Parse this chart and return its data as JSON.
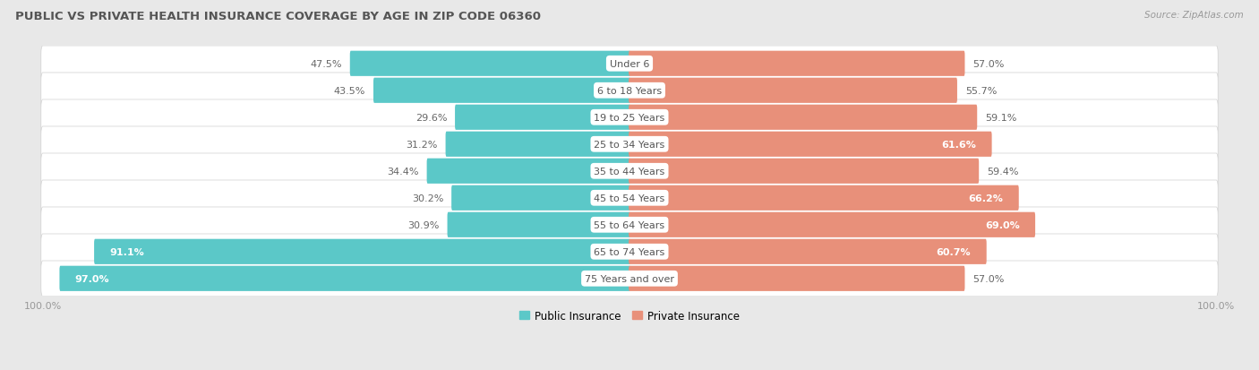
{
  "title": "PUBLIC VS PRIVATE HEALTH INSURANCE COVERAGE BY AGE IN ZIP CODE 06360",
  "source": "Source: ZipAtlas.com",
  "categories": [
    "Under 6",
    "6 to 18 Years",
    "19 to 25 Years",
    "25 to 34 Years",
    "35 to 44 Years",
    "45 to 54 Years",
    "55 to 64 Years",
    "65 to 74 Years",
    "75 Years and over"
  ],
  "public_values": [
    47.5,
    43.5,
    29.6,
    31.2,
    34.4,
    30.2,
    30.9,
    91.1,
    97.0
  ],
  "private_values": [
    57.0,
    55.7,
    59.1,
    61.6,
    59.4,
    66.2,
    69.0,
    60.7,
    57.0
  ],
  "public_color": "#5BC8C8",
  "private_color": "#E8907A",
  "bg_color": "#E8E8E8",
  "row_bg_color": "#FFFFFF",
  "row_border_color": "#D0D0D0",
  "title_color": "#555555",
  "label_color_dark": "#666666",
  "label_color_white": "#FFFFFF",
  "axis_label_color": "#999999",
  "legend_public": "Public Insurance",
  "legend_private": "Private Insurance",
  "cat_label_color": "#555555",
  "cat_bg_color": "#FFFFFF"
}
